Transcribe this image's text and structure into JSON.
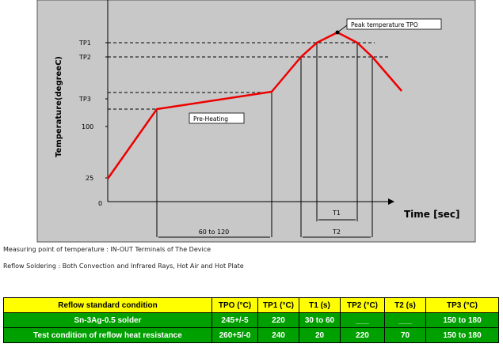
{
  "diagram": {
    "y_axis_label": "Temperature(degreeC)",
    "x_axis_label": "Time [sec]",
    "y_ticks": [
      "TP1",
      "TP2",
      "TP3",
      "100",
      "25",
      "0"
    ],
    "peak_label": "Peak temperature TPO",
    "preheat_label": "Pre-Heating",
    "preheat_duration_label": "60 to 120",
    "t1_label": "T1",
    "t2_label": "T2",
    "colors": {
      "profile_line": "#ee0000",
      "plot_background": "#c8c8c8",
      "table_header": "#ffff00",
      "table_body": "#00a000"
    }
  },
  "notes": {
    "measuring_point": "Measuring point of temperature : IN-OUT Terminals of The Device",
    "reflow_soldering": "Reflow Soldering : Both Convection and Infrared Rays, Hot Air and Hot Plate"
  },
  "table": {
    "headers": [
      "Reflow standard condition",
      "TPO (°C)",
      "TP1 (°C)",
      "T1 (s)",
      "TP2 (°C)",
      "T2 (s)",
      "TP3 (°C)"
    ],
    "rows": [
      [
        "Sn-3Ag-0.5 solder",
        "245+/-5",
        "220",
        "30 to 60",
        "___",
        "___",
        "150 to 180"
      ],
      [
        "Test condition of reflow heat resistance",
        "260+5/-0",
        "240",
        "20",
        "220",
        "70",
        "150 to 180"
      ]
    ]
  }
}
